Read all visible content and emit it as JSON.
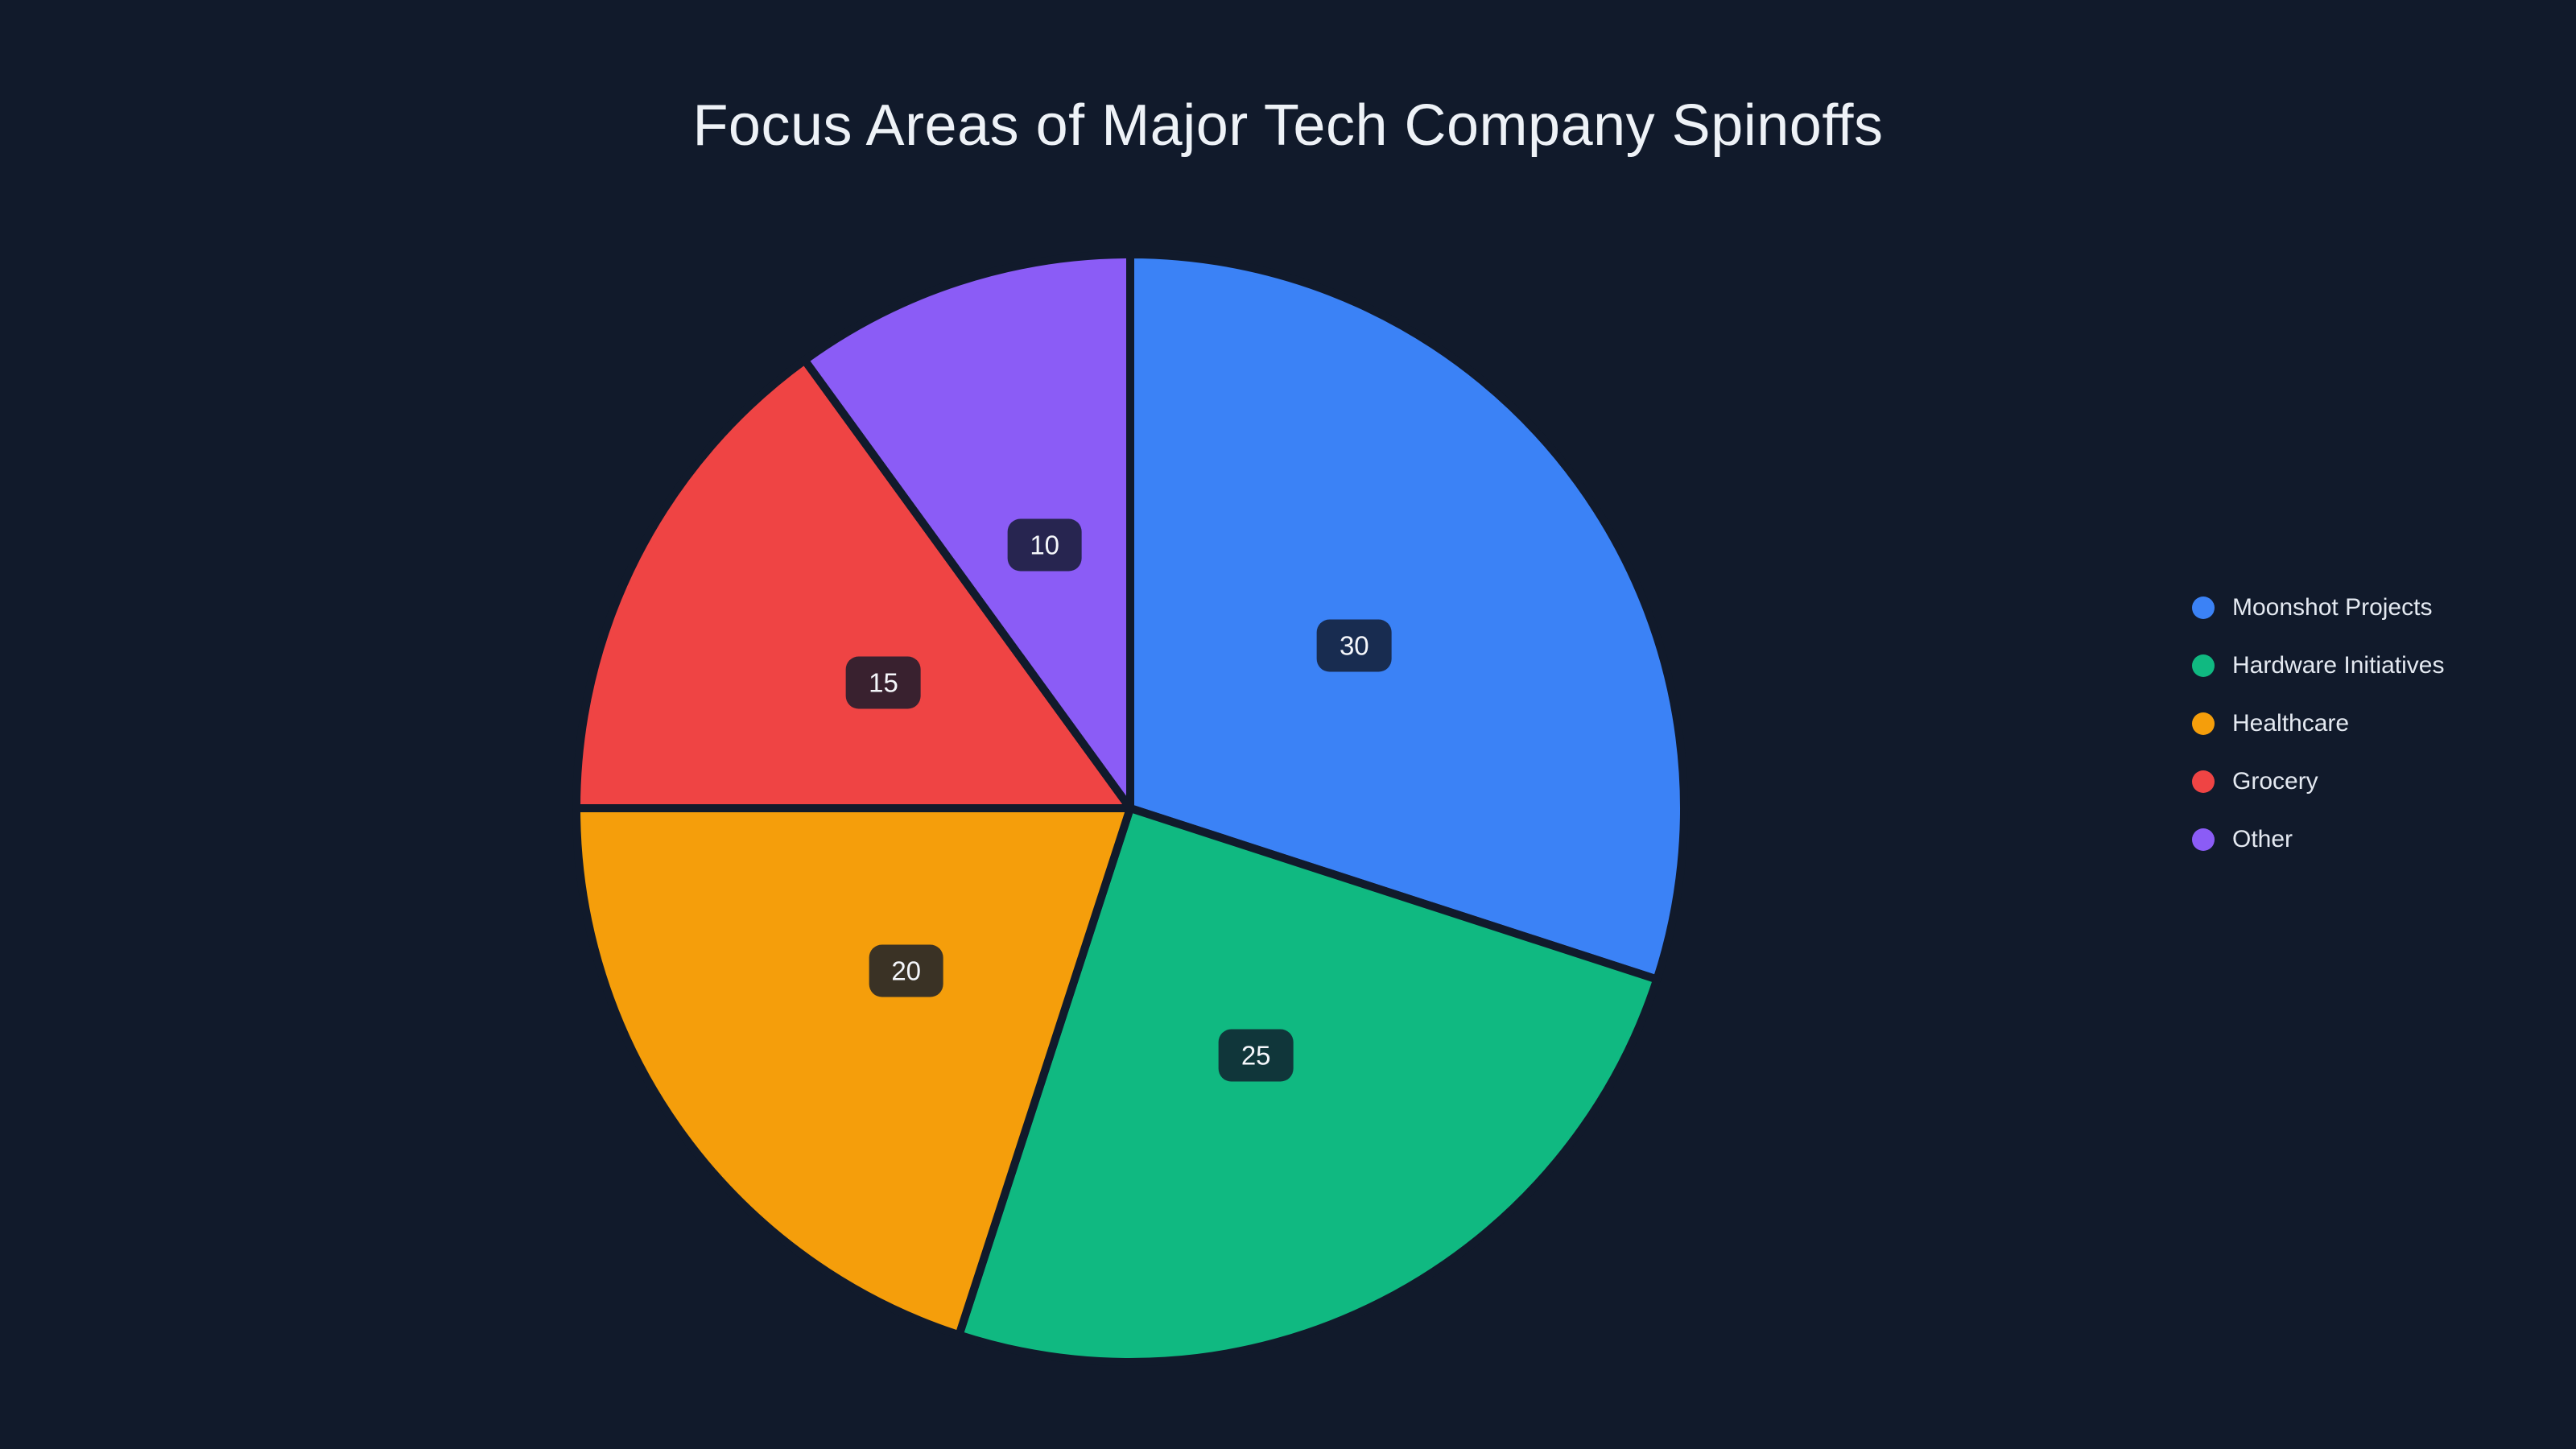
{
  "background": "#111a2b",
  "chart_data": {
    "type": "pie",
    "title": "Focus Areas of Major Tech Company Spinoffs",
    "categories": [
      "Moonshot Projects",
      "Hardware Initiatives",
      "Healthcare",
      "Grocery",
      "Other"
    ],
    "values": [
      30,
      25,
      20,
      15,
      10
    ],
    "colors": [
      "#3b82f6",
      "#10b981",
      "#f59e0b",
      "#ef4444",
      "#8b5cf6"
    ],
    "slice_label_color": "#f5f7fb",
    "slice_label_radius_fraction": 0.5,
    "start_angle_deg": 0,
    "direction": "clockwise",
    "legend_position": "right",
    "grid": false
  }
}
